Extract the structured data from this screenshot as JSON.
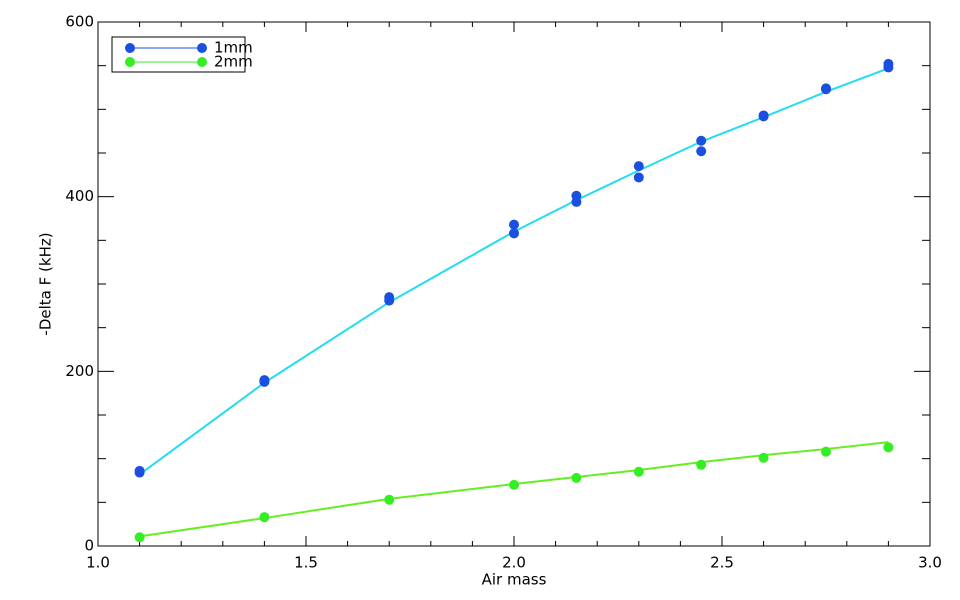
{
  "chart_data": {
    "type": "scatter",
    "x_label": "Air mass",
    "y_label": "-Delta F (kHz)",
    "xlim": [
      1.0,
      3.0
    ],
    "ylim": [
      0,
      600
    ],
    "xticks": [
      {
        "value": 1.0,
        "label": "1.0"
      },
      {
        "value": 1.5,
        "label": "1.5"
      },
      {
        "value": 2.0,
        "label": "2.0"
      },
      {
        "value": 2.5,
        "label": "2.5"
      },
      {
        "value": 3.0,
        "label": "3.0"
      }
    ],
    "yticks": [
      0,
      200,
      400,
      600
    ],
    "xminorticks": [
      1.1,
      1.2,
      1.3,
      1.4,
      1.6,
      1.7,
      1.8,
      1.9,
      2.1,
      2.2,
      2.3,
      2.4,
      2.6,
      2.7,
      2.8,
      2.9
    ],
    "yminorticks": [
      50,
      100,
      150,
      250,
      300,
      350,
      450,
      500,
      550
    ],
    "legend": "upper-left",
    "series": [
      {
        "name": "1mm",
        "color": "#1a4fe0",
        "fit_color": "#22ddee",
        "x": [
          1.1,
          1.1,
          1.4,
          1.4,
          1.7,
          1.7,
          2.0,
          2.0,
          2.15,
          2.15,
          2.3,
          2.3,
          2.45,
          2.45,
          2.6,
          2.6,
          2.75,
          2.75,
          2.9,
          2.9
        ],
        "values": [
          84,
          86,
          188,
          190,
          285,
          281,
          368,
          358,
          401,
          394,
          435,
          422,
          464,
          452,
          493,
          492,
          524,
          523,
          552,
          548
        ],
        "fit_x": [
          1.1,
          1.4,
          1.7,
          2.0,
          2.15,
          2.3,
          2.45,
          2.6,
          2.75,
          2.9
        ],
        "fit_values": [
          82,
          187,
          279,
          360,
          396,
          430,
          463,
          491,
          520,
          547
        ]
      },
      {
        "name": "2mm",
        "color": "#33ee22",
        "fit_color": "#66ee22",
        "x": [
          1.1,
          1.4,
          1.7,
          2.0,
          2.15,
          2.3,
          2.45,
          2.6,
          2.75,
          2.9
        ],
        "values": [
          10,
          33,
          53,
          70,
          78,
          85,
          93,
          101,
          108,
          113
        ],
        "fit_x": [
          1.1,
          1.4,
          1.7,
          2.0,
          2.15,
          2.3,
          2.45,
          2.6,
          2.75,
          2.9
        ],
        "fit_values": [
          11,
          32,
          54,
          71,
          79,
          87,
          96,
          104,
          111,
          119
        ]
      }
    ]
  }
}
